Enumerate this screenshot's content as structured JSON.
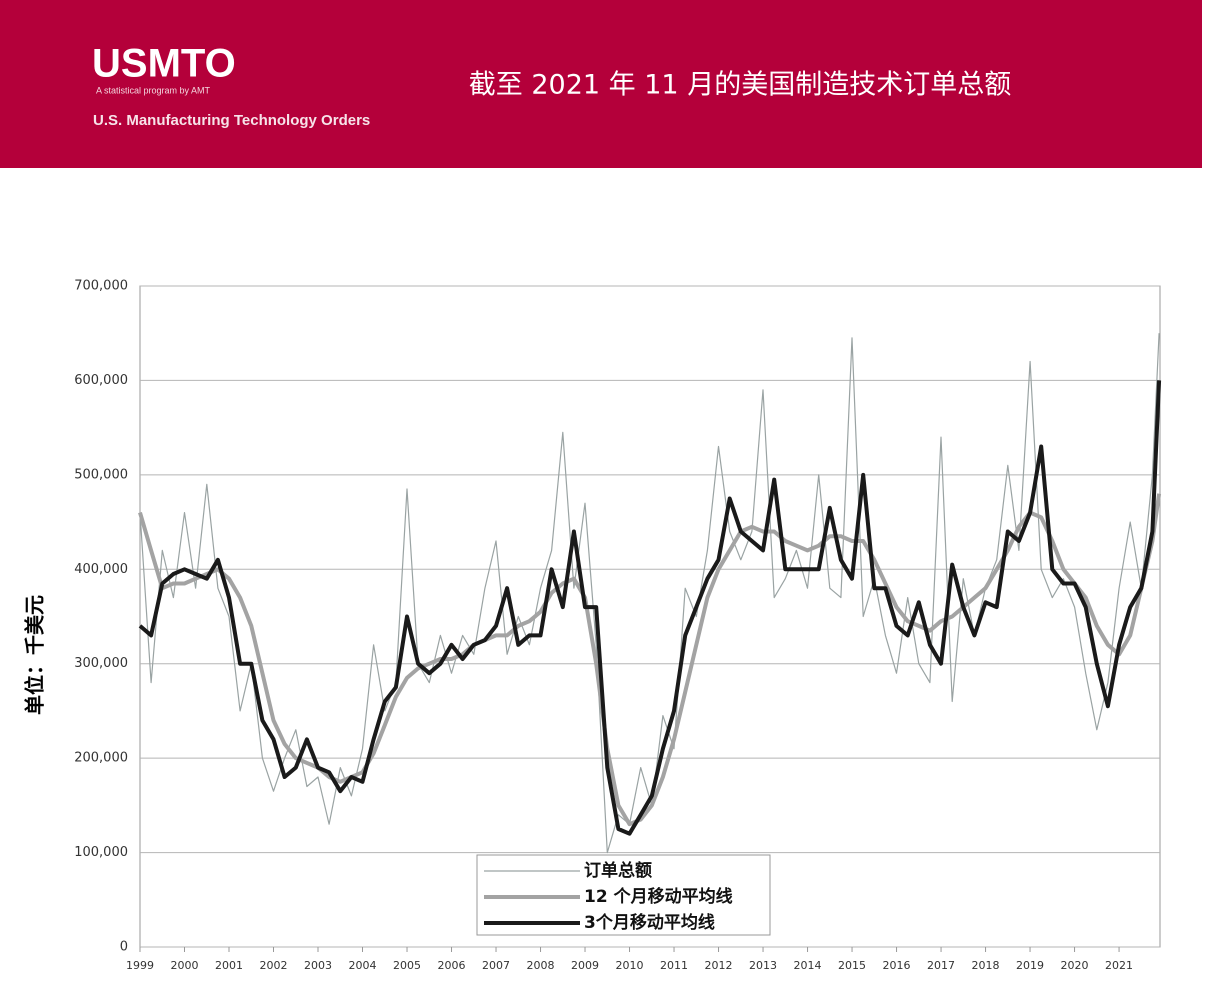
{
  "header": {
    "logo": "USMTO",
    "logo_tagline": "A statistical program by AMT",
    "program": "U.S. Manufacturing Technology Orders"
  },
  "chart_data": {
    "type": "line",
    "title": "截至 2021 年 11 月的美国制造技术订单总额",
    "y_label": "单位：千美元",
    "x": [
      1999,
      1999.25,
      1999.5,
      1999.75,
      2000,
      2000.25,
      2000.5,
      2000.75,
      2001,
      2001.25,
      2001.5,
      2001.75,
      2002,
      2002.25,
      2002.5,
      2002.75,
      2003,
      2003.25,
      2003.5,
      2003.75,
      2004,
      2004.25,
      2004.5,
      2004.75,
      2005,
      2005.25,
      2005.5,
      2005.75,
      2006,
      2006.25,
      2006.5,
      2006.75,
      2007,
      2007.25,
      2007.5,
      2007.75,
      2008,
      2008.25,
      2008.5,
      2008.75,
      2009,
      2009.25,
      2009.5,
      2009.75,
      2010,
      2010.25,
      2010.5,
      2010.75,
      2011,
      2011.25,
      2011.5,
      2011.75,
      2012,
      2012.25,
      2012.5,
      2012.75,
      2013,
      2013.25,
      2013.5,
      2013.75,
      2014,
      2014.25,
      2014.5,
      2014.75,
      2015,
      2015.25,
      2015.5,
      2015.75,
      2016,
      2016.25,
      2016.5,
      2016.75,
      2017,
      2017.25,
      2017.5,
      2017.75,
      2018,
      2018.25,
      2018.5,
      2018.75,
      2019,
      2019.25,
      2019.5,
      2019.75,
      2020,
      2020.25,
      2020.5,
      2020.75,
      2021,
      2021.25,
      2021.5,
      2021.75,
      2021.9
    ],
    "series": [
      {
        "name": "订单总额",
        "color": "#9aa3a3",
        "values": [
          460000,
          280000,
          420000,
          370000,
          460000,
          380000,
          490000,
          380000,
          350000,
          250000,
          300000,
          200000,
          165000,
          200000,
          230000,
          170000,
          180000,
          130000,
          190000,
          160000,
          210000,
          320000,
          250000,
          280000,
          485000,
          300000,
          280000,
          330000,
          290000,
          330000,
          310000,
          380000,
          430000,
          310000,
          350000,
          320000,
          380000,
          420000,
          545000,
          380000,
          470000,
          320000,
          100000,
          140000,
          130000,
          190000,
          150000,
          245000,
          210000,
          380000,
          350000,
          420000,
          530000,
          440000,
          410000,
          440000,
          590000,
          370000,
          390000,
          420000,
          380000,
          500000,
          380000,
          370000,
          645000,
          350000,
          390000,
          330000,
          290000,
          370000,
          300000,
          280000,
          540000,
          260000,
          390000,
          330000,
          380000,
          410000,
          510000,
          420000,
          620000,
          400000,
          370000,
          390000,
          360000,
          290000,
          230000,
          280000,
          380000,
          450000,
          380000,
          500000,
          650000
        ]
      },
      {
        "name": "12 个月移动平均线",
        "color": "#a3a3a3",
        "values": [
          460000,
          420000,
          380000,
          385000,
          385000,
          390000,
          395000,
          400000,
          390000,
          370000,
          340000,
          290000,
          240000,
          215000,
          200000,
          195000,
          190000,
          180000,
          175000,
          180000,
          185000,
          205000,
          235000,
          265000,
          285000,
          295000,
          300000,
          305000,
          305000,
          310000,
          320000,
          325000,
          330000,
          330000,
          340000,
          345000,
          355000,
          375000,
          385000,
          390000,
          370000,
          300000,
          210000,
          150000,
          130000,
          135000,
          150000,
          180000,
          220000,
          270000,
          320000,
          370000,
          400000,
          420000,
          440000,
          445000,
          440000,
          440000,
          430000,
          425000,
          420000,
          425000,
          435000,
          435000,
          430000,
          430000,
          410000,
          385000,
          360000,
          345000,
          340000,
          335000,
          345000,
          350000,
          360000,
          370000,
          380000,
          400000,
          420000,
          445000,
          460000,
          455000,
          430000,
          400000,
          385000,
          370000,
          340000,
          320000,
          310000,
          330000,
          380000,
          430000,
          480000
        ]
      },
      {
        "name": "3个月移动平均线",
        "color": "#1a1a1a",
        "values": [
          340000,
          330000,
          385000,
          395000,
          400000,
          395000,
          390000,
          410000,
          370000,
          300000,
          300000,
          240000,
          220000,
          180000,
          190000,
          220000,
          190000,
          185000,
          165000,
          180000,
          175000,
          220000,
          260000,
          275000,
          350000,
          300000,
          290000,
          300000,
          320000,
          305000,
          320000,
          325000,
          340000,
          380000,
          320000,
          330000,
          330000,
          400000,
          360000,
          440000,
          360000,
          360000,
          190000,
          125000,
          120000,
          140000,
          160000,
          210000,
          250000,
          330000,
          360000,
          390000,
          410000,
          475000,
          440000,
          430000,
          420000,
          495000,
          400000,
          400000,
          400000,
          400000,
          465000,
          410000,
          390000,
          500000,
          380000,
          380000,
          340000,
          330000,
          365000,
          320000,
          300000,
          405000,
          360000,
          330000,
          365000,
          360000,
          440000,
          430000,
          460000,
          530000,
          400000,
          385000,
          385000,
          360000,
          300000,
          255000,
          320000,
          360000,
          380000,
          440000,
          600000
        ]
      }
    ],
    "xlim": [
      1999,
      2021.92
    ],
    "xticks": [
      1999,
      2000,
      2001,
      2002,
      2003,
      2004,
      2005,
      2006,
      2007,
      2008,
      2009,
      2010,
      2011,
      2012,
      2013,
      2014,
      2015,
      2016,
      2017,
      2018,
      2019,
      2020,
      2021
    ],
    "ylim": [
      0,
      700000
    ],
    "yticks": [
      0,
      {
        "value": 100000,
        "label": "100,000"
      },
      {
        "value": 200000,
        "label": "200,000"
      },
      {
        "value": 300000,
        "label": "300,000"
      },
      {
        "value": 400000,
        "label": "400,000"
      },
      {
        "value": 500000,
        "label": "500,000"
      },
      {
        "value": 600000,
        "label": "600,000"
      },
      {
        "value": 700000,
        "label": "700,000"
      }
    ],
    "grid": true
  }
}
